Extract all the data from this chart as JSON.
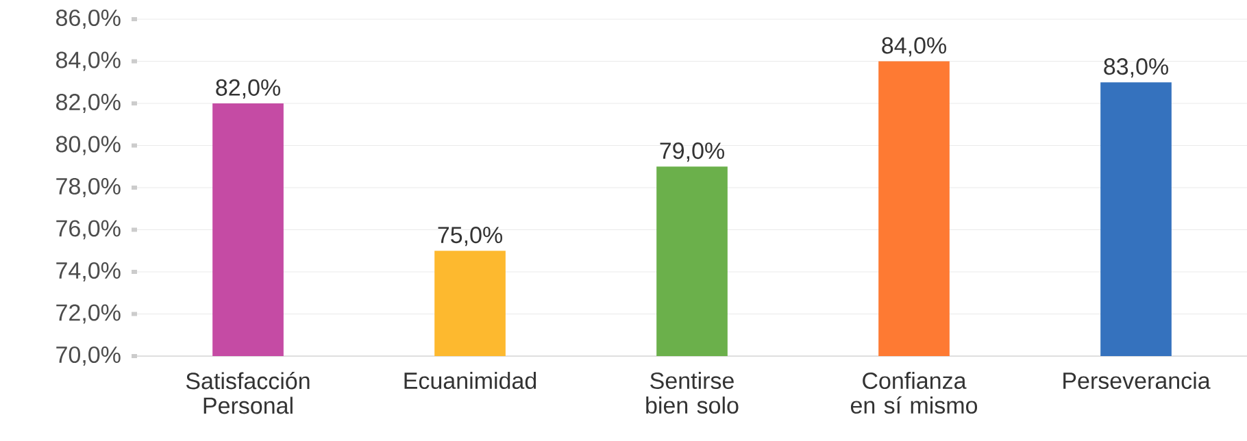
{
  "chart_data": {
    "type": "bar",
    "categories": [
      "Satisfacción Personal",
      "Ecuanimidad",
      "Sentirse bien solo",
      "Confianza en sí mismo",
      "Perseverancia"
    ],
    "values": [
      82,
      75,
      79,
      84,
      83
    ],
    "colors": [
      "#c54ba4",
      "#fdb92f",
      "#6bb04b",
      "#fe7a33",
      "#3572be"
    ],
    "value_labels": [
      "82,0%",
      "75,0%",
      "79,0%",
      "84,0%",
      "83,0%"
    ],
    "ylim": [
      70,
      86
    ],
    "yticks": [
      {
        "value": 70,
        "label": "70,0%"
      },
      {
        "value": 72,
        "label": "72,0%"
      },
      {
        "value": 74,
        "label": "74,0%"
      },
      {
        "value": 76,
        "label": "76,0%"
      },
      {
        "value": 78,
        "label": "78,0%"
      },
      {
        "value": 80,
        "label": "80,0%"
      },
      {
        "value": 82,
        "label": "82,0%"
      },
      {
        "value": 84,
        "label": "84,0%"
      },
      {
        "value": 86,
        "label": "86,0%"
      }
    ],
    "grid": "y"
  }
}
